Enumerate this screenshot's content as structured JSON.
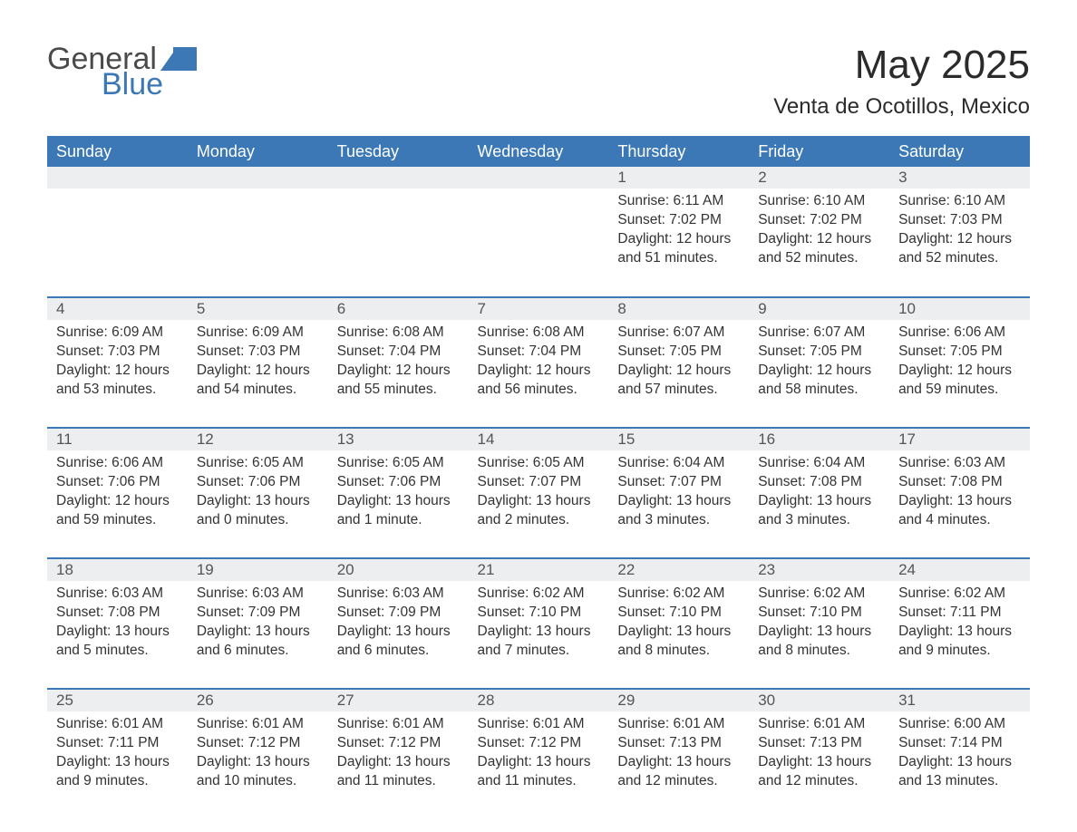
{
  "logo": {
    "word1": "General",
    "word2": "Blue",
    "icon_color": "#3b78b5",
    "text1_color": "#4a4a4a",
    "text2_color": "#3b78b5"
  },
  "title": "May 2025",
  "location": "Venta de Ocotillos, Mexico",
  "header_bg": "#3b78b5",
  "header_fg": "#ffffff",
  "daynum_bg": "#eceeef",
  "row_border_color": "#3b78b5",
  "body_text_color": "#333333",
  "weekdays": [
    "Sunday",
    "Monday",
    "Tuesday",
    "Wednesday",
    "Thursday",
    "Friday",
    "Saturday"
  ],
  "weeks": [
    [
      null,
      null,
      null,
      null,
      {
        "d": "1",
        "sunrise": "6:11 AM",
        "sunset": "7:02 PM",
        "daylight": "12 hours and 51 minutes."
      },
      {
        "d": "2",
        "sunrise": "6:10 AM",
        "sunset": "7:02 PM",
        "daylight": "12 hours and 52 minutes."
      },
      {
        "d": "3",
        "sunrise": "6:10 AM",
        "sunset": "7:03 PM",
        "daylight": "12 hours and 52 minutes."
      }
    ],
    [
      {
        "d": "4",
        "sunrise": "6:09 AM",
        "sunset": "7:03 PM",
        "daylight": "12 hours and 53 minutes."
      },
      {
        "d": "5",
        "sunrise": "6:09 AM",
        "sunset": "7:03 PM",
        "daylight": "12 hours and 54 minutes."
      },
      {
        "d": "6",
        "sunrise": "6:08 AM",
        "sunset": "7:04 PM",
        "daylight": "12 hours and 55 minutes."
      },
      {
        "d": "7",
        "sunrise": "6:08 AM",
        "sunset": "7:04 PM",
        "daylight": "12 hours and 56 minutes."
      },
      {
        "d": "8",
        "sunrise": "6:07 AM",
        "sunset": "7:05 PM",
        "daylight": "12 hours and 57 minutes."
      },
      {
        "d": "9",
        "sunrise": "6:07 AM",
        "sunset": "7:05 PM",
        "daylight": "12 hours and 58 minutes."
      },
      {
        "d": "10",
        "sunrise": "6:06 AM",
        "sunset": "7:05 PM",
        "daylight": "12 hours and 59 minutes."
      }
    ],
    [
      {
        "d": "11",
        "sunrise": "6:06 AM",
        "sunset": "7:06 PM",
        "daylight": "12 hours and 59 minutes."
      },
      {
        "d": "12",
        "sunrise": "6:05 AM",
        "sunset": "7:06 PM",
        "daylight": "13 hours and 0 minutes."
      },
      {
        "d": "13",
        "sunrise": "6:05 AM",
        "sunset": "7:06 PM",
        "daylight": "13 hours and 1 minute."
      },
      {
        "d": "14",
        "sunrise": "6:05 AM",
        "sunset": "7:07 PM",
        "daylight": "13 hours and 2 minutes."
      },
      {
        "d": "15",
        "sunrise": "6:04 AM",
        "sunset": "7:07 PM",
        "daylight": "13 hours and 3 minutes."
      },
      {
        "d": "16",
        "sunrise": "6:04 AM",
        "sunset": "7:08 PM",
        "daylight": "13 hours and 3 minutes."
      },
      {
        "d": "17",
        "sunrise": "6:03 AM",
        "sunset": "7:08 PM",
        "daylight": "13 hours and 4 minutes."
      }
    ],
    [
      {
        "d": "18",
        "sunrise": "6:03 AM",
        "sunset": "7:08 PM",
        "daylight": "13 hours and 5 minutes."
      },
      {
        "d": "19",
        "sunrise": "6:03 AM",
        "sunset": "7:09 PM",
        "daylight": "13 hours and 6 minutes."
      },
      {
        "d": "20",
        "sunrise": "6:03 AM",
        "sunset": "7:09 PM",
        "daylight": "13 hours and 6 minutes."
      },
      {
        "d": "21",
        "sunrise": "6:02 AM",
        "sunset": "7:10 PM",
        "daylight": "13 hours and 7 minutes."
      },
      {
        "d": "22",
        "sunrise": "6:02 AM",
        "sunset": "7:10 PM",
        "daylight": "13 hours and 8 minutes."
      },
      {
        "d": "23",
        "sunrise": "6:02 AM",
        "sunset": "7:10 PM",
        "daylight": "13 hours and 8 minutes."
      },
      {
        "d": "24",
        "sunrise": "6:02 AM",
        "sunset": "7:11 PM",
        "daylight": "13 hours and 9 minutes."
      }
    ],
    [
      {
        "d": "25",
        "sunrise": "6:01 AM",
        "sunset": "7:11 PM",
        "daylight": "13 hours and 9 minutes."
      },
      {
        "d": "26",
        "sunrise": "6:01 AM",
        "sunset": "7:12 PM",
        "daylight": "13 hours and 10 minutes."
      },
      {
        "d": "27",
        "sunrise": "6:01 AM",
        "sunset": "7:12 PM",
        "daylight": "13 hours and 11 minutes."
      },
      {
        "d": "28",
        "sunrise": "6:01 AM",
        "sunset": "7:12 PM",
        "daylight": "13 hours and 11 minutes."
      },
      {
        "d": "29",
        "sunrise": "6:01 AM",
        "sunset": "7:13 PM",
        "daylight": "13 hours and 12 minutes."
      },
      {
        "d": "30",
        "sunrise": "6:01 AM",
        "sunset": "7:13 PM",
        "daylight": "13 hours and 12 minutes."
      },
      {
        "d": "31",
        "sunrise": "6:00 AM",
        "sunset": "7:14 PM",
        "daylight": "13 hours and 13 minutes."
      }
    ]
  ],
  "labels": {
    "sunrise": "Sunrise:",
    "sunset": "Sunset:",
    "daylight": "Daylight:"
  }
}
